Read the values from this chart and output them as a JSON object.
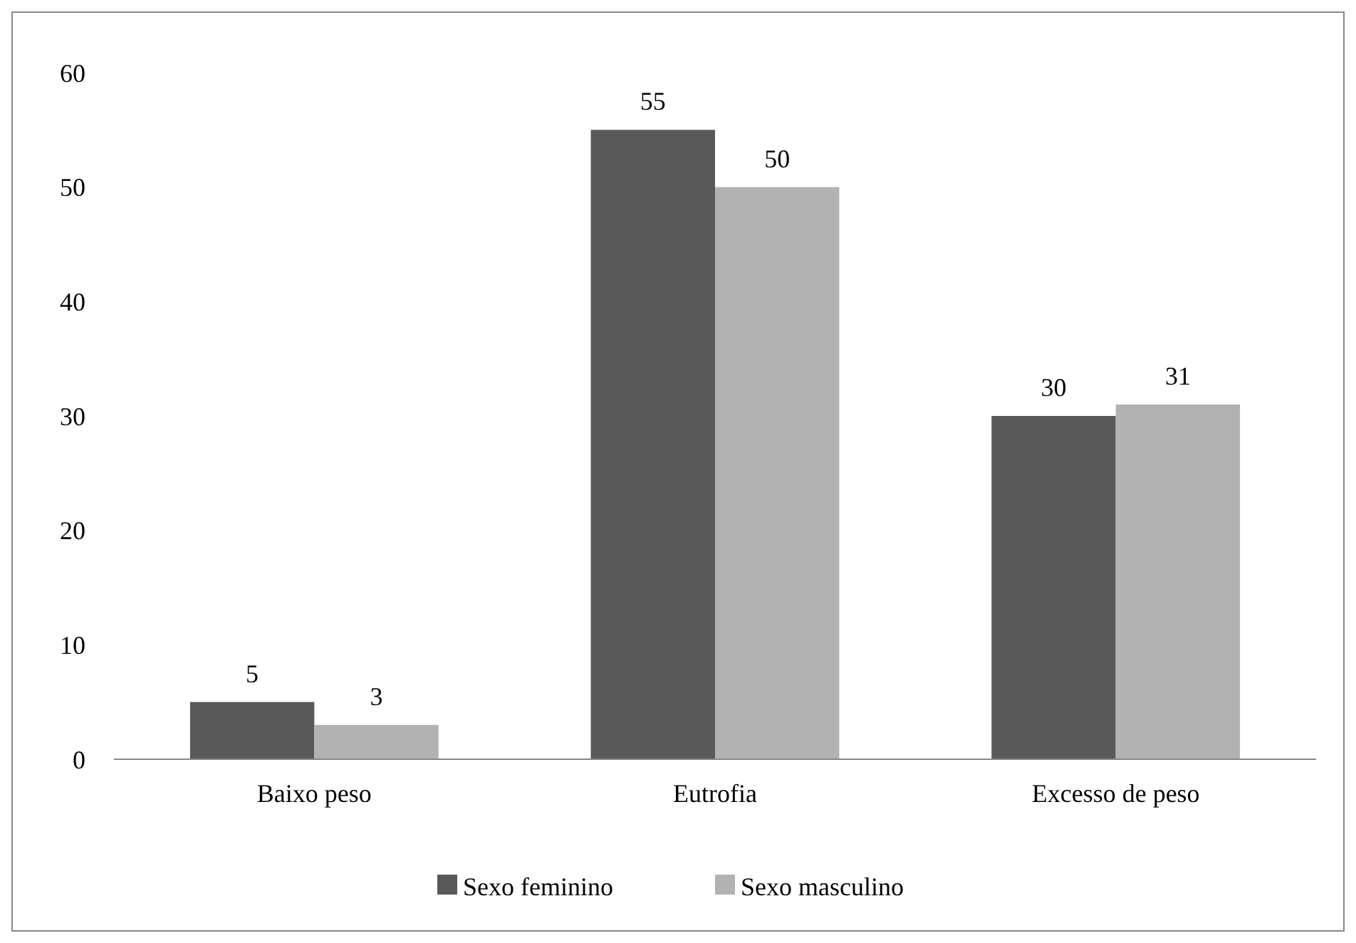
{
  "chart_data": {
    "type": "bar",
    "categories": [
      "Baixo peso",
      "Eutrofia",
      "Excesso de peso"
    ],
    "series": [
      {
        "name": "Sexo feminino",
        "color": "#595959",
        "values": [
          5,
          55,
          30
        ]
      },
      {
        "name": "Sexo masculino",
        "color": "#b2b2b2",
        "values": [
          3,
          50,
          31
        ]
      }
    ],
    "ylim": [
      0,
      60
    ],
    "yticks": [
      0,
      10,
      20,
      30,
      40,
      50,
      60
    ],
    "grid": false,
    "legend": "bottom",
    "data_labels": true
  }
}
